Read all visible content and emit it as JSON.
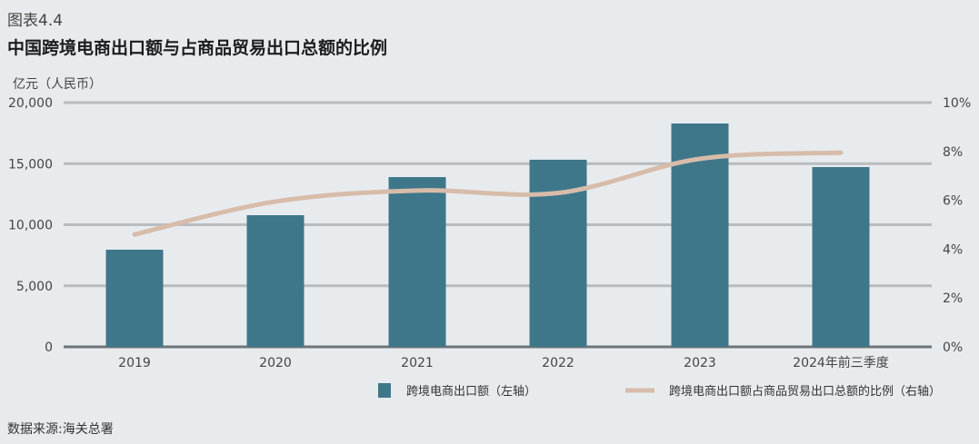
{
  "figure_label": "图表4.4",
  "title": "中国跨境电商出口额与占商品贸易出口总额的比例",
  "unit_label": "亿元（人民币）",
  "source": "数据来源:海关总署",
  "colors": {
    "bar": "#3e778a",
    "line": "#d7bcaa",
    "grid": "#b8bcbf",
    "axis": "#6e7579",
    "background": "#e8ebee"
  },
  "chart_data": {
    "type": "bar+line",
    "title": "中国跨境电商出口额与占商品贸易出口总额的比例",
    "categories": [
      "2019",
      "2020",
      "2021",
      "2022",
      "2023",
      "2024年前三季度"
    ],
    "series": [
      {
        "name": "跨境电商出口额（左轴）",
        "type": "bar",
        "axis": "left",
        "values": [
          7955,
          10780,
          13900,
          15320,
          18290,
          14720
        ]
      },
      {
        "name": "跨境电商出口额占商品贸易出口总额的比例（右轴）",
        "type": "line",
        "axis": "right",
        "values": [
          4.6,
          5.95,
          6.4,
          6.3,
          7.7,
          7.95
        ]
      }
    ],
    "left_axis": {
      "label": "亿元（人民币）",
      "ylim": [
        0,
        20000
      ],
      "ticks": [
        "0",
        "5,000",
        "10,000",
        "15,000",
        "20,000"
      ],
      "tick_values": [
        0,
        5000,
        10000,
        15000,
        20000
      ]
    },
    "right_axis": {
      "ylim": [
        0,
        10
      ],
      "ticks": [
        "0%",
        "2%",
        "4%",
        "6%",
        "8%",
        "10%"
      ],
      "tick_values": [
        0,
        2,
        4,
        6,
        8,
        10
      ]
    },
    "grid": true,
    "legend_position": "bottom-right"
  }
}
